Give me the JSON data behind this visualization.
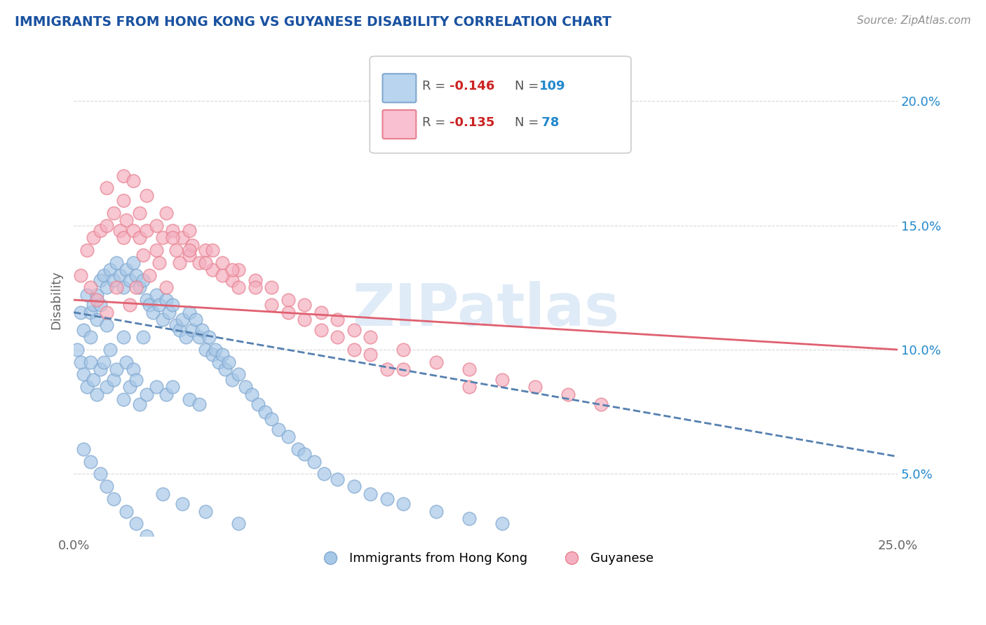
{
  "title": "IMMIGRANTS FROM HONG KONG VS GUYANESE DISABILITY CORRELATION CHART",
  "source": "Source: ZipAtlas.com",
  "ylabel": "Disability",
  "xmin": 0.0,
  "xmax": 0.25,
  "ymin": 0.025,
  "ymax": 0.215,
  "yticks": [
    0.05,
    0.1,
    0.15,
    0.2
  ],
  "ytick_labels": [
    "5.0%",
    "10.0%",
    "15.0%",
    "20.0%"
  ],
  "hk_color": "#a8c8e8",
  "guy_color": "#f4b0c0",
  "hk_edge_color": "#80a8d0",
  "guy_edge_color": "#e88090",
  "hk_line_color": "#5580b0",
  "guy_line_color": "#e06070",
  "title_color": "#1a52a0",
  "source_color": "#909090",
  "legend_r_color": "#cc2222",
  "legend_n_color": "#2288cc",
  "hk_legend_fill": "#b8d4ee",
  "guy_legend_fill": "#f8c0d0",
  "background_color": "#ffffff",
  "grid_color": "#d8d8d8",
  "hk_line_x0": 0.0,
  "hk_line_x1": 0.25,
  "hk_line_y0": 0.115,
  "hk_line_y1": 0.057,
  "guy_line_x0": 0.0,
  "guy_line_x1": 0.25,
  "guy_line_y0": 0.12,
  "guy_line_y1": 0.1,
  "hk_scatter_x": [
    0.001,
    0.002,
    0.002,
    0.003,
    0.003,
    0.004,
    0.004,
    0.005,
    0.005,
    0.005,
    0.006,
    0.006,
    0.007,
    0.007,
    0.007,
    0.008,
    0.008,
    0.008,
    0.009,
    0.009,
    0.01,
    0.01,
    0.01,
    0.011,
    0.011,
    0.012,
    0.012,
    0.013,
    0.013,
    0.014,
    0.015,
    0.015,
    0.015,
    0.016,
    0.016,
    0.017,
    0.017,
    0.018,
    0.018,
    0.019,
    0.019,
    0.02,
    0.02,
    0.021,
    0.021,
    0.022,
    0.022,
    0.023,
    0.024,
    0.025,
    0.025,
    0.026,
    0.027,
    0.028,
    0.028,
    0.029,
    0.03,
    0.03,
    0.031,
    0.032,
    0.033,
    0.034,
    0.035,
    0.035,
    0.036,
    0.037,
    0.038,
    0.038,
    0.039,
    0.04,
    0.041,
    0.042,
    0.043,
    0.044,
    0.045,
    0.046,
    0.047,
    0.048,
    0.05,
    0.052,
    0.054,
    0.056,
    0.058,
    0.06,
    0.062,
    0.065,
    0.068,
    0.07,
    0.073,
    0.076,
    0.08,
    0.085,
    0.09,
    0.095,
    0.1,
    0.11,
    0.12,
    0.13,
    0.003,
    0.005,
    0.008,
    0.01,
    0.012,
    0.016,
    0.019,
    0.022,
    0.027,
    0.033,
    0.04,
    0.05
  ],
  "hk_scatter_y": [
    0.1,
    0.115,
    0.095,
    0.108,
    0.09,
    0.122,
    0.085,
    0.115,
    0.105,
    0.095,
    0.118,
    0.088,
    0.122,
    0.112,
    0.082,
    0.128,
    0.118,
    0.092,
    0.13,
    0.095,
    0.125,
    0.11,
    0.085,
    0.132,
    0.1,
    0.128,
    0.088,
    0.135,
    0.092,
    0.13,
    0.125,
    0.105,
    0.08,
    0.132,
    0.095,
    0.128,
    0.085,
    0.135,
    0.092,
    0.13,
    0.088,
    0.125,
    0.078,
    0.128,
    0.105,
    0.12,
    0.082,
    0.118,
    0.115,
    0.122,
    0.085,
    0.118,
    0.112,
    0.12,
    0.082,
    0.115,
    0.118,
    0.085,
    0.11,
    0.108,
    0.112,
    0.105,
    0.115,
    0.08,
    0.108,
    0.112,
    0.105,
    0.078,
    0.108,
    0.1,
    0.105,
    0.098,
    0.1,
    0.095,
    0.098,
    0.092,
    0.095,
    0.088,
    0.09,
    0.085,
    0.082,
    0.078,
    0.075,
    0.072,
    0.068,
    0.065,
    0.06,
    0.058,
    0.055,
    0.05,
    0.048,
    0.045,
    0.042,
    0.04,
    0.038,
    0.035,
    0.032,
    0.03,
    0.06,
    0.055,
    0.05,
    0.045,
    0.04,
    0.035,
    0.03,
    0.025,
    0.042,
    0.038,
    0.035,
    0.03
  ],
  "guy_scatter_x": [
    0.002,
    0.004,
    0.005,
    0.006,
    0.007,
    0.008,
    0.01,
    0.01,
    0.012,
    0.013,
    0.014,
    0.015,
    0.016,
    0.017,
    0.018,
    0.019,
    0.02,
    0.021,
    0.022,
    0.023,
    0.025,
    0.026,
    0.027,
    0.028,
    0.03,
    0.031,
    0.032,
    0.033,
    0.035,
    0.036,
    0.038,
    0.04,
    0.042,
    0.045,
    0.048,
    0.05,
    0.055,
    0.06,
    0.065,
    0.07,
    0.075,
    0.08,
    0.085,
    0.09,
    0.1,
    0.11,
    0.12,
    0.13,
    0.14,
    0.15,
    0.16,
    0.01,
    0.015,
    0.02,
    0.025,
    0.03,
    0.035,
    0.04,
    0.045,
    0.05,
    0.06,
    0.07,
    0.08,
    0.09,
    0.1,
    0.12,
    0.015,
    0.018,
    0.022,
    0.028,
    0.035,
    0.042,
    0.048,
    0.055,
    0.065,
    0.075,
    0.085,
    0.095
  ],
  "guy_scatter_y": [
    0.13,
    0.14,
    0.125,
    0.145,
    0.12,
    0.148,
    0.15,
    0.115,
    0.155,
    0.125,
    0.148,
    0.145,
    0.152,
    0.118,
    0.148,
    0.125,
    0.145,
    0.138,
    0.148,
    0.13,
    0.14,
    0.135,
    0.145,
    0.125,
    0.148,
    0.14,
    0.135,
    0.145,
    0.138,
    0.142,
    0.135,
    0.14,
    0.132,
    0.135,
    0.128,
    0.132,
    0.128,
    0.125,
    0.12,
    0.118,
    0.115,
    0.112,
    0.108,
    0.105,
    0.1,
    0.095,
    0.092,
    0.088,
    0.085,
    0.082,
    0.078,
    0.165,
    0.16,
    0.155,
    0.15,
    0.145,
    0.14,
    0.135,
    0.13,
    0.125,
    0.118,
    0.112,
    0.105,
    0.098,
    0.092,
    0.085,
    0.17,
    0.168,
    0.162,
    0.155,
    0.148,
    0.14,
    0.132,
    0.125,
    0.115,
    0.108,
    0.1,
    0.092
  ],
  "watermark_text": "ZIPatlas"
}
